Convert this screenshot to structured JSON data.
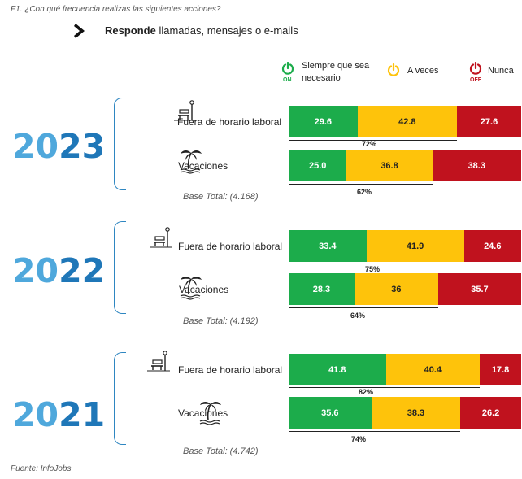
{
  "question": "F1. ¿Con qué frecuencia realizas las siguientes acciones?",
  "subtitle": {
    "bold": "Responde",
    "rest": " llamadas, mensajes o e-mails"
  },
  "legend": [
    {
      "label": "Siempre que sea necesario",
      "state": "ON",
      "color": "#1cac4b"
    },
    {
      "label": "A veces",
      "state": "",
      "color": "#fec30b"
    },
    {
      "label": "Nunca",
      "state": "OFF",
      "color": "#c0121e"
    }
  ],
  "source": "Fuente: InfoJobs",
  "chart_data": {
    "type": "bar",
    "stacked": true,
    "orientation": "horizontal",
    "series_names": [
      "Siempre que sea necesario",
      "A veces",
      "Nunca"
    ],
    "colors": [
      "#1cac4b",
      "#fec30b",
      "#c0121e"
    ],
    "groups": [
      {
        "year_a": "20",
        "year_b": "23",
        "base": "Base Total: (4.168)",
        "rows": [
          {
            "label": "Fuera de horario laboral",
            "values": [
              29.6,
              42.8,
              27.6
            ],
            "labels": [
              "29.6",
              "42.8",
              "27.6"
            ],
            "sum": "72%"
          },
          {
            "label": "Vacaciones",
            "values": [
              25.0,
              36.8,
              38.3
            ],
            "labels": [
              "25.0",
              "36.8",
              "38.3"
            ],
            "sum": "62%"
          }
        ]
      },
      {
        "year_a": "20",
        "year_b": "22",
        "base": "Base Total: (4.192)",
        "rows": [
          {
            "label": "Fuera de horario laboral",
            "values": [
              33.4,
              41.9,
              24.6
            ],
            "labels": [
              "33.4",
              "41.9",
              "24.6"
            ],
            "sum": "75%"
          },
          {
            "label": "Vacaciones",
            "values": [
              28.3,
              36,
              35.7
            ],
            "labels": [
              "28.3",
              "36",
              "35.7"
            ],
            "sum": "64%"
          }
        ]
      },
      {
        "year_a": "20",
        "year_b": "21",
        "base": "Base Total: (4.742)",
        "rows": [
          {
            "label": "Fuera de horario laboral",
            "values": [
              41.8,
              40.4,
              17.8
            ],
            "labels": [
              "41.8",
              "40.4",
              "17.8"
            ],
            "sum": "82%"
          },
          {
            "label": "Vacaciones",
            "values": [
              35.6,
              38.3,
              26.2
            ],
            "labels": [
              "35.6",
              "38.3",
              "26.2"
            ],
            "sum": "74%"
          }
        ]
      }
    ]
  }
}
